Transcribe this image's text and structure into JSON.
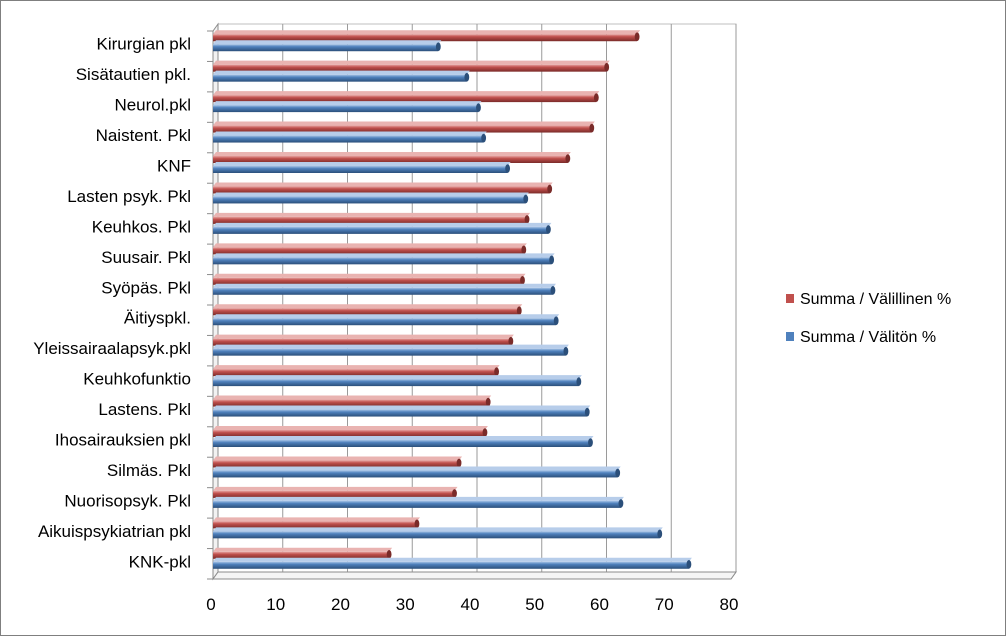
{
  "chart_data": {
    "type": "bar",
    "orientation": "horizontal",
    "style": "3d-cylinder",
    "categories": [
      "Kirurgian pkl",
      "Sisätautien pkl.",
      "Neurol.pkl",
      "Naistent. Pkl",
      "KNF",
      "Lasten psyk. Pkl",
      "Keuhkos. Pkl",
      "Suusair. Pkl",
      "Syöpäs. Pkl",
      "Äitiyspkl.",
      "Yleissairaalapsyk.pkl",
      "Keuhkofunktio",
      "Lastens. Pkl",
      "Ihosairauksien pkl",
      "Silmäs. Pkl",
      "Nuorisopsyk. Pkl",
      "Aikuispsykiatrian pkl",
      "KNK-pkl"
    ],
    "series": [
      {
        "name": "Summa  / Välillinen %",
        "color": "#c0504d",
        "values": [
          65.5,
          60.8,
          59.2,
          58.5,
          54.8,
          52.0,
          48.5,
          48.0,
          47.8,
          47.3,
          46.0,
          43.8,
          42.5,
          42.0,
          38.0,
          37.3,
          31.5,
          27.2
        ]
      },
      {
        "name": "Summa  / Välitön %",
        "color": "#4f81bd",
        "values": [
          34.8,
          39.2,
          41.0,
          41.8,
          45.5,
          48.3,
          51.8,
          52.3,
          52.5,
          53.0,
          54.5,
          56.5,
          57.8,
          58.3,
          62.5,
          63.0,
          69.0,
          73.5
        ]
      }
    ],
    "x_ticks": [
      "0",
      "10",
      "20",
      "30",
      "40",
      "50",
      "60",
      "70",
      "80"
    ],
    "xlim": [
      0,
      80
    ],
    "grid": true,
    "legend_position": "right"
  }
}
